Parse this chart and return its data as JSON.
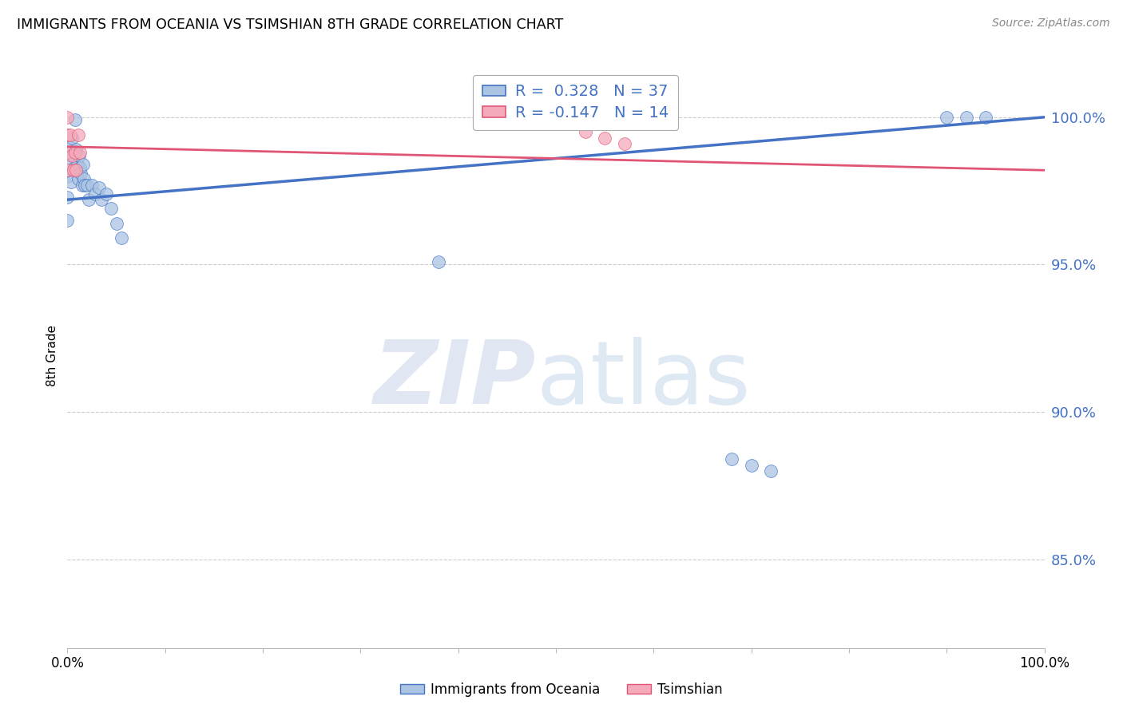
{
  "title": "IMMIGRANTS FROM OCEANIA VS TSIMSHIAN 8TH GRADE CORRELATION CHART",
  "source": "Source: ZipAtlas.com",
  "ylabel": "8th Grade",
  "ylabel_right_labels": [
    "100.0%",
    "95.0%",
    "90.0%",
    "85.0%"
  ],
  "ylabel_right_values": [
    1.0,
    0.95,
    0.9,
    0.85
  ],
  "xlim": [
    0.0,
    1.0
  ],
  "ylim": [
    0.82,
    1.018
  ],
  "blue_r": 0.328,
  "blue_n": 37,
  "pink_r": -0.147,
  "pink_n": 14,
  "blue_color": "#aac4e2",
  "pink_color": "#f5aabb",
  "blue_line_color": "#4472c4",
  "pink_line_color": "#e05575",
  "grid_color": "#cccccc",
  "legend_label_blue": "Immigrants from Oceania",
  "legend_label_pink": "Tsimshian",
  "blue_points_x": [
    0.0,
    0.0,
    0.0,
    0.002,
    0.003,
    0.004,
    0.005,
    0.006,
    0.007,
    0.008,
    0.009,
    0.01,
    0.011,
    0.012,
    0.013,
    0.014,
    0.015,
    0.016,
    0.017,
    0.018,
    0.02,
    0.022,
    0.025,
    0.028,
    0.032,
    0.035,
    0.04,
    0.045,
    0.05,
    0.055,
    0.38,
    0.68,
    0.7,
    0.72,
    0.9,
    0.92,
    0.94
  ],
  "blue_points_y": [
    0.98,
    0.973,
    0.965,
    0.99,
    0.984,
    0.978,
    0.993,
    0.987,
    0.983,
    0.999,
    0.989,
    0.984,
    0.979,
    0.987,
    0.983,
    0.981,
    0.977,
    0.984,
    0.979,
    0.977,
    0.977,
    0.972,
    0.977,
    0.974,
    0.976,
    0.972,
    0.974,
    0.969,
    0.964,
    0.959,
    0.951,
    0.884,
    0.882,
    0.88,
    1.0,
    1.0,
    1.0
  ],
  "pink_points_x": [
    0.0,
    0.0,
    0.0,
    0.0,
    0.003,
    0.005,
    0.006,
    0.008,
    0.009,
    0.011,
    0.013,
    0.53,
    0.55,
    0.57
  ],
  "pink_points_y": [
    1.0,
    0.994,
    0.988,
    0.982,
    0.994,
    0.987,
    0.982,
    0.988,
    0.982,
    0.994,
    0.988,
    0.995,
    0.993,
    0.991
  ],
  "blue_line_x": [
    0.0,
    1.0
  ],
  "blue_line_y_start": 0.972,
  "blue_line_y_end": 1.0,
  "pink_line_x": [
    0.0,
    1.0
  ],
  "pink_line_y_start": 0.99,
  "pink_line_y_end": 0.982
}
